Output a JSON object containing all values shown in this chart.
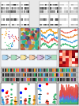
{
  "bg_color": "#e8e8e8",
  "western_blot_bg": "#ffffff",
  "scatter_bg": "#ffffff",
  "structure_bg": "#ddeedd",
  "line_bg": "#ffffff",
  "gel_bg": "#888888",
  "bar_bg": "#ffffff",
  "line_colors_g": [
    "#27ae60",
    "#e74c3c",
    "#3498db",
    "#f39c12"
  ],
  "line_colors_h": [
    "#27ae60",
    "#3498db",
    "#e67e22",
    "#e74c3c"
  ],
  "line_colors_final": [
    "#27ae60",
    "#3498db",
    "#9b59b6",
    "#e74c3c"
  ],
  "bar_colors": [
    "#3498db",
    "#e74c3c",
    "#27ae60",
    "#f39c12"
  ],
  "blob_colors": [
    "#27ae60",
    "#3498db",
    "#e74c3c",
    "#f39c12",
    "#9b59b6",
    "#1abc9c",
    "#e67e22",
    "#2c3e50"
  ],
  "heatmap_base": [
    "#ffffff",
    "#ffe0e0",
    "#ffb0b0",
    "#ff6060",
    "#ff0000"
  ],
  "gel_band_colors": [
    "#e74c3c",
    "#3498db",
    "#27ae60",
    "#f39c12",
    "#9b59b6"
  ],
  "sequence_colors": [
    "#e74c3c",
    "#3498db",
    "#27ae60",
    "#f39c12",
    "#9b59b6",
    "#e67e22"
  ]
}
